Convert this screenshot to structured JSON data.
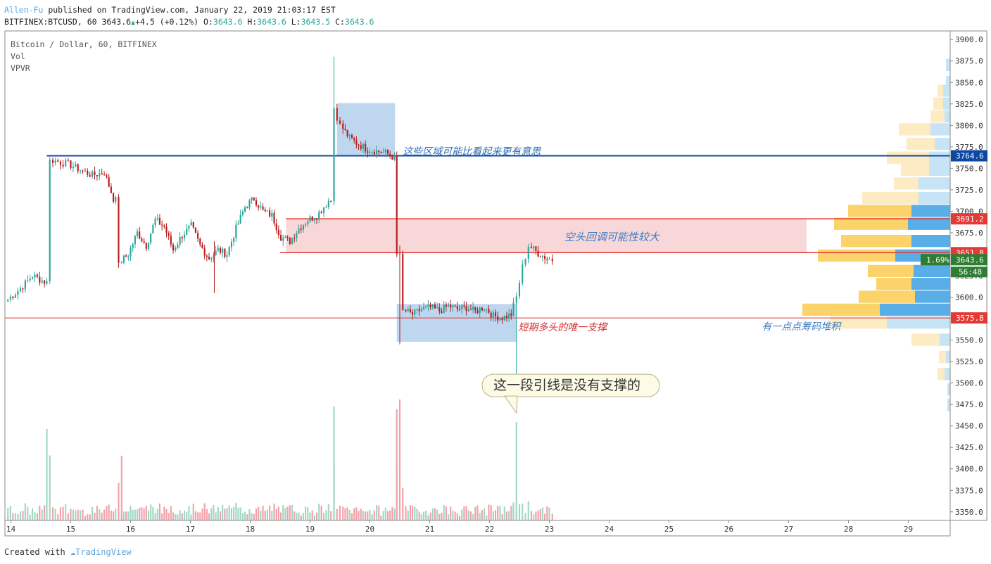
{
  "header": {
    "author": "Allen-Fu",
    "published_text": "published on TradingView.com, January 22, 2019 21:03:17 EST",
    "symbol": "BITFINEX:BTCUSD, 60",
    "last": "3643.6",
    "change": "+4.5 (+0.12%)",
    "o_label": "O:",
    "o": "3643.6",
    "h_label": "H:",
    "h": "3643.6",
    "l_label": "L:",
    "l": "3643.5",
    "c_label": "C:",
    "c": "3643.6"
  },
  "legend": [
    "Bitcoin / Dollar, 60, BITFINEX",
    "Vol",
    "VPVR"
  ],
  "footer": {
    "created": "Created with",
    "brand": "TradingView"
  },
  "annotations": {
    "top_zone": "这些区域可能比看起来更有意思",
    "pullback": "空头回调可能性较大",
    "support": "短期多头的唯一支撑",
    "accum": "有一点点筹码堆积",
    "bubble": "这一段引线是没有支撑的"
  },
  "price_tags": {
    "blue_line": "3764.6",
    "red_upper": "3691.2",
    "red_lower": "3651.8",
    "current": "3643.6",
    "pct": "1.69%",
    "countdown": "56:48",
    "support": "3575.8"
  },
  "colors": {
    "up": "#26a69a",
    "down": "#b71c1c",
    "blue_line": "#0d47a1",
    "red_line": "#e53935",
    "zone_blue": "#a9c8ea",
    "zone_red": "#f4bcc0",
    "vol_up": "#9fd8c4",
    "vol_down": "#f2a0a8",
    "vp_yellow": "#fbd36a",
    "vp_yellow_light": "#fdebc4",
    "vp_blue": "#5aaee8",
    "vp_blue_light": "#c7e3f6"
  },
  "chart_data": {
    "type": "candlestick",
    "title": "Bitcoin / Dollar, 60, BITFINEX",
    "xlabel": "",
    "ylabel": "",
    "x_ticks": [
      "14",
      "15",
      "16",
      "17",
      "18",
      "19",
      "20",
      "21",
      "22",
      "23",
      "24",
      "25",
      "26",
      "27",
      "28",
      "29"
    ],
    "y_ticks": [
      "3350.0",
      "3375.0",
      "3400.0",
      "3425.0",
      "3450.0",
      "3475.0",
      "3500.0",
      "3525.0",
      "3550.0",
      "3575.0",
      "3600.0",
      "3625.0",
      "3650.0",
      "3675.0",
      "3700.0",
      "3725.0",
      "3750.0",
      "3775.0",
      "3800.0",
      "3825.0",
      "3850.0",
      "3875.0",
      "3900.0"
    ],
    "ylim": [
      3340,
      3910
    ],
    "xlim": [
      13.9,
      29.7
    ],
    "closes": [
      [
        13.95,
        3595
      ],
      [
        14.2,
        3610
      ],
      [
        14.4,
        3625
      ],
      [
        14.6,
        3618
      ],
      [
        14.7,
        3760
      ],
      [
        15.0,
        3755
      ],
      [
        15.2,
        3748
      ],
      [
        15.4,
        3742
      ],
      [
        15.6,
        3745
      ],
      [
        15.75,
        3715
      ],
      [
        15.85,
        3640
      ],
      [
        16.0,
        3650
      ],
      [
        16.15,
        3675
      ],
      [
        16.3,
        3660
      ],
      [
        16.45,
        3690
      ],
      [
        16.6,
        3682
      ],
      [
        16.75,
        3655
      ],
      [
        16.9,
        3672
      ],
      [
        17.05,
        3683
      ],
      [
        17.2,
        3660
      ],
      [
        17.35,
        3645
      ],
      [
        17.5,
        3655
      ],
      [
        17.65,
        3650
      ],
      [
        17.8,
        3680
      ],
      [
        17.95,
        3705
      ],
      [
        18.1,
        3715
      ],
      [
        18.25,
        3700
      ],
      [
        18.4,
        3695
      ],
      [
        18.55,
        3670
      ],
      [
        18.7,
        3665
      ],
      [
        18.85,
        3680
      ],
      [
        19.0,
        3690
      ],
      [
        19.15,
        3695
      ],
      [
        19.35,
        3712
      ],
      [
        19.45,
        3820
      ],
      [
        19.55,
        3800
      ],
      [
        19.7,
        3785
      ],
      [
        19.85,
        3778
      ],
      [
        20.0,
        3772
      ],
      [
        20.15,
        3770
      ],
      [
        20.3,
        3768
      ],
      [
        20.45,
        3762
      ],
      [
        20.5,
        3650
      ],
      [
        20.6,
        3585
      ],
      [
        20.75,
        3580
      ],
      [
        20.9,
        3586
      ],
      [
        21.05,
        3588
      ],
      [
        21.2,
        3584
      ],
      [
        21.35,
        3590
      ],
      [
        21.5,
        3586
      ],
      [
        21.65,
        3588
      ],
      [
        21.8,
        3583
      ],
      [
        21.95,
        3589
      ],
      [
        22.1,
        3578
      ],
      [
        22.25,
        3576
      ],
      [
        22.4,
        3580
      ],
      [
        22.5,
        3600
      ],
      [
        22.6,
        3635
      ],
      [
        22.7,
        3660
      ],
      [
        22.85,
        3651
      ],
      [
        23.0,
        3645
      ],
      [
        23.1,
        3643.6
      ]
    ],
    "volume_max": 3475,
    "zones": [
      {
        "name": "top-box",
        "x": [
          19.45,
          20.42
        ],
        "y": [
          3764,
          3826
        ]
      },
      {
        "name": "pullback-box",
        "x": [
          18.6,
          27.3
        ],
        "y": [
          3652,
          3691
        ]
      },
      {
        "name": "range-box",
        "x": [
          20.45,
          22.45
        ],
        "y": [
          3548,
          3592
        ]
      }
    ],
    "levels": {
      "blue": 3764.6,
      "red_upper": 3691.2,
      "red_lower": 3651.8,
      "support": 3575.8
    },
    "vpvr": [
      [
        3870,
        0,
        6
      ],
      [
        3850,
        0,
        6
      ],
      [
        3840,
        8,
        10
      ],
      [
        3825,
        14,
        10
      ],
      [
        3810,
        20,
        8
      ],
      [
        3795,
        45,
        28
      ],
      [
        3778,
        40,
        22
      ],
      [
        3762,
        60,
        30
      ],
      [
        3748,
        40,
        30
      ],
      [
        3732,
        35,
        45
      ],
      [
        3715,
        80,
        45
      ],
      [
        3700,
        90,
        55
      ],
      [
        3685,
        105,
        60
      ],
      [
        3665,
        100,
        55
      ],
      [
        3648,
        110,
        78
      ],
      [
        3630,
        65,
        52
      ],
      [
        3615,
        50,
        55
      ],
      [
        3600,
        80,
        50
      ],
      [
        3585,
        110,
        100
      ],
      [
        3570,
        80,
        90
      ],
      [
        3550,
        40,
        15
      ],
      [
        3530,
        10,
        6
      ],
      [
        3510,
        10,
        8
      ],
      [
        3492,
        0,
        4
      ],
      [
        3474,
        0,
        4
      ]
    ]
  }
}
